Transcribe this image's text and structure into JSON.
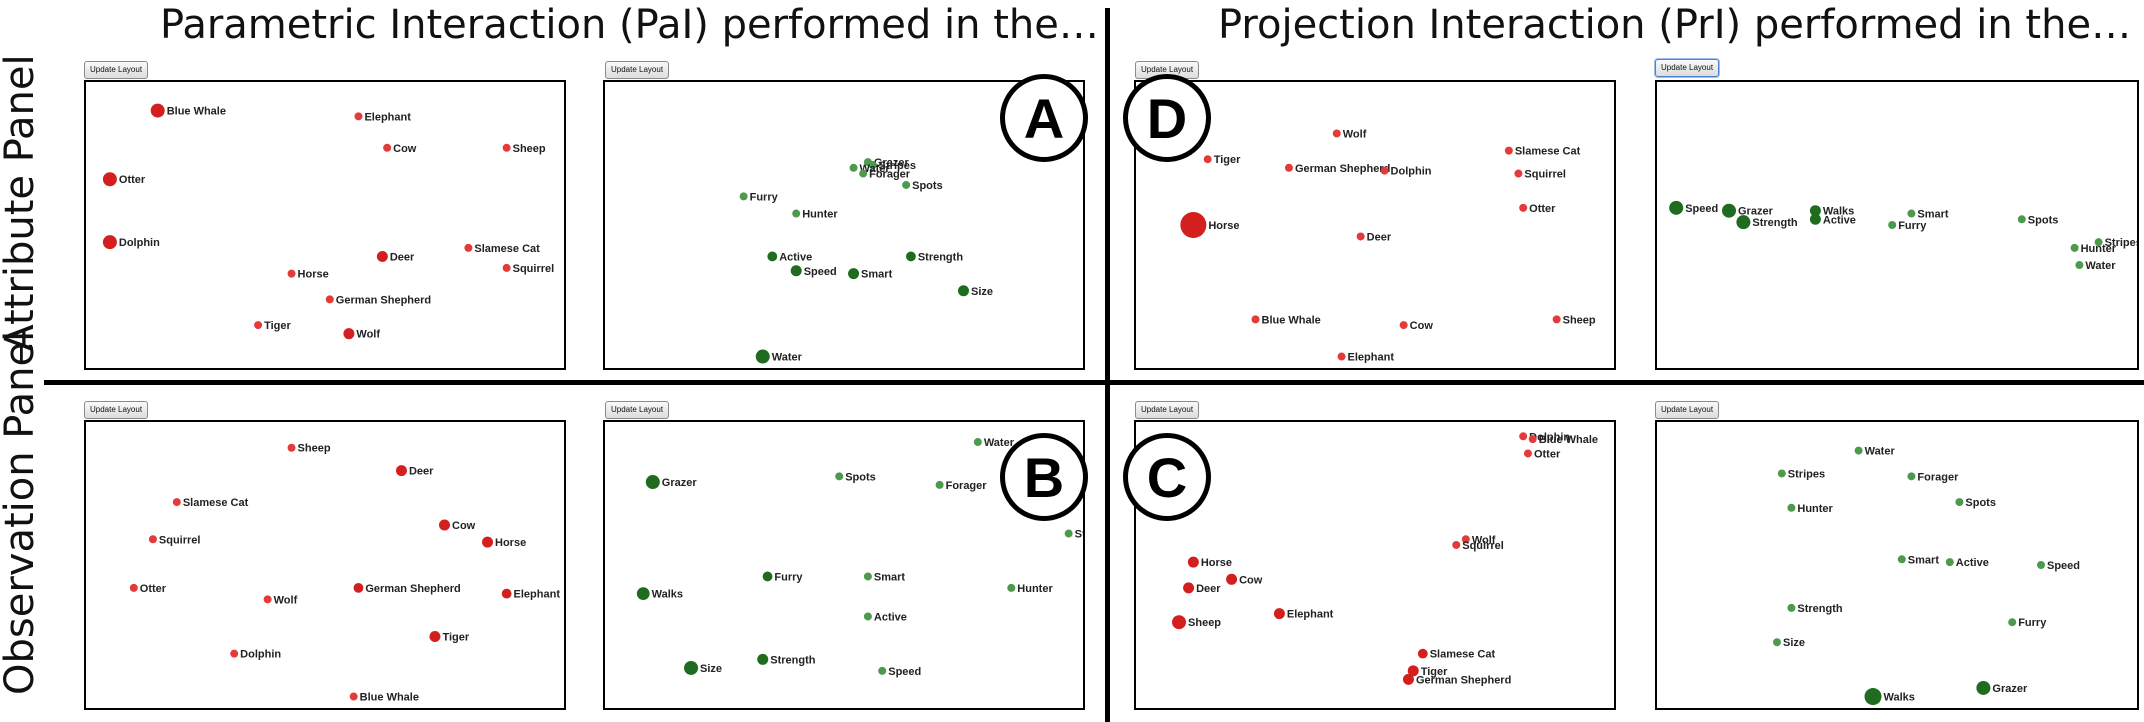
{
  "headers": {
    "left": "Parametric Interaction (PaI) performed in the…",
    "right": "Projection Interaction (PrI) performed in the…",
    "top_row": "Attribute Panel",
    "bottom_row": "Observation Panel"
  },
  "button_label": "Update Layout",
  "badges": {
    "a": "A",
    "b": "B",
    "c": "C",
    "d": "D"
  },
  "colors": {
    "observation": "#e53a3a",
    "observation_dark": "#d41f1f",
    "attribute": "#4c9a4c",
    "attribute_dark": "#1f6b1f"
  },
  "panels": [
    {
      "id": "A-observations",
      "kind": "observation",
      "points": [
        {
          "label": "Blue Whale",
          "x": 0.15,
          "y": 0.1,
          "size": 2
        },
        {
          "label": "Elephant",
          "x": 0.57,
          "y": 0.12,
          "size": 1
        },
        {
          "label": "Cow",
          "x": 0.63,
          "y": 0.23,
          "size": 1
        },
        {
          "label": "Sheep",
          "x": 0.88,
          "y": 0.23,
          "size": 1
        },
        {
          "label": "Otter",
          "x": 0.05,
          "y": 0.34,
          "size": 2
        },
        {
          "label": "Dolphin",
          "x": 0.05,
          "y": 0.56,
          "size": 2
        },
        {
          "label": "Slamese Cat",
          "x": 0.8,
          "y": 0.58,
          "size": 1
        },
        {
          "label": "Deer",
          "x": 0.62,
          "y": 0.61,
          "size": 1.5
        },
        {
          "label": "Horse",
          "x": 0.43,
          "y": 0.67,
          "size": 1
        },
        {
          "label": "Squirrel",
          "x": 0.88,
          "y": 0.65,
          "size": 1
        },
        {
          "label": "German Shepherd",
          "x": 0.51,
          "y": 0.76,
          "size": 1
        },
        {
          "label": "Tiger",
          "x": 0.36,
          "y": 0.85,
          "size": 1
        },
        {
          "label": "Wolf",
          "x": 0.55,
          "y": 0.88,
          "size": 1.5
        }
      ]
    },
    {
      "id": "A-attributes",
      "kind": "attribute",
      "points": [
        {
          "label": "Grazer",
          "x": 0.55,
          "y": 0.28,
          "size": 1
        },
        {
          "label": "Stripes",
          "x": 0.56,
          "y": 0.29,
          "size": 1
        },
        {
          "label": "Water",
          "x": 0.52,
          "y": 0.3,
          "size": 1
        },
        {
          "label": "Forager",
          "x": 0.54,
          "y": 0.32,
          "size": 1
        },
        {
          "label": "Spots",
          "x": 0.63,
          "y": 0.36,
          "size": 1
        },
        {
          "label": "Furry",
          "x": 0.29,
          "y": 0.4,
          "size": 1
        },
        {
          "label": "Hunter",
          "x": 0.4,
          "y": 0.46,
          "size": 1
        },
        {
          "label": "Active",
          "x": 0.35,
          "y": 0.61,
          "size": 1.3
        },
        {
          "label": "Strength",
          "x": 0.64,
          "y": 0.61,
          "size": 1.3
        },
        {
          "label": "Speed",
          "x": 0.4,
          "y": 0.66,
          "size": 1.5
        },
        {
          "label": "Smart",
          "x": 0.52,
          "y": 0.67,
          "size": 1.5
        },
        {
          "label": "Size",
          "x": 0.75,
          "y": 0.73,
          "size": 1.5
        },
        {
          "label": "Water",
          "x": 0.33,
          "y": 0.96,
          "size": 2
        }
      ]
    },
    {
      "id": "D-observations",
      "kind": "observation",
      "points": [
        {
          "label": "Wolf",
          "x": 0.42,
          "y": 0.18,
          "size": 1
        },
        {
          "label": "Tiger",
          "x": 0.15,
          "y": 0.27,
          "size": 1
        },
        {
          "label": "Slamese Cat",
          "x": 0.78,
          "y": 0.24,
          "size": 1
        },
        {
          "label": "German Shepherd",
          "x": 0.32,
          "y": 0.3,
          "size": 1
        },
        {
          "label": "Dolphin",
          "x": 0.52,
          "y": 0.31,
          "size": 1
        },
        {
          "label": "Squirrel",
          "x": 0.8,
          "y": 0.32,
          "size": 1
        },
        {
          "label": "Otter",
          "x": 0.81,
          "y": 0.44,
          "size": 1
        },
        {
          "label": "Horse",
          "x": 0.12,
          "y": 0.5,
          "size": 4
        },
        {
          "label": "Deer",
          "x": 0.47,
          "y": 0.54,
          "size": 1
        },
        {
          "label": "Blue Whale",
          "x": 0.25,
          "y": 0.83,
          "size": 1
        },
        {
          "label": "Cow",
          "x": 0.56,
          "y": 0.85,
          "size": 1
        },
        {
          "label": "Sheep",
          "x": 0.88,
          "y": 0.83,
          "size": 1
        },
        {
          "label": "Elephant",
          "x": 0.43,
          "y": 0.96,
          "size": 1
        }
      ]
    },
    {
      "id": "D-attributes",
      "kind": "attribute",
      "points": [
        {
          "label": "Speed",
          "x": 0.04,
          "y": 0.44,
          "size": 2
        },
        {
          "label": "Grazer",
          "x": 0.15,
          "y": 0.45,
          "size": 2
        },
        {
          "label": "Walks",
          "x": 0.33,
          "y": 0.45,
          "size": 1.5
        },
        {
          "label": "Smart",
          "x": 0.53,
          "y": 0.46,
          "size": 1
        },
        {
          "label": "Strength",
          "x": 0.18,
          "y": 0.49,
          "size": 2
        },
        {
          "label": "Active",
          "x": 0.33,
          "y": 0.48,
          "size": 1.5
        },
        {
          "label": "Furry",
          "x": 0.49,
          "y": 0.5,
          "size": 1
        },
        {
          "label": "Spots",
          "x": 0.76,
          "y": 0.48,
          "size": 1
        },
        {
          "label": "Stripes",
          "x": 0.92,
          "y": 0.56,
          "size": 1
        },
        {
          "label": "Hunter",
          "x": 0.87,
          "y": 0.58,
          "size": 1
        },
        {
          "label": "Water",
          "x": 0.88,
          "y": 0.64,
          "size": 1
        }
      ]
    },
    {
      "id": "B-observations",
      "kind": "observation",
      "points": [
        {
          "label": "Sheep",
          "x": 0.43,
          "y": 0.09,
          "size": 1
        },
        {
          "label": "Deer",
          "x": 0.66,
          "y": 0.17,
          "size": 1.5
        },
        {
          "label": "Slamese Cat",
          "x": 0.19,
          "y": 0.28,
          "size": 1
        },
        {
          "label": "Cow",
          "x": 0.75,
          "y": 0.36,
          "size": 1.5
        },
        {
          "label": "Squirrel",
          "x": 0.14,
          "y": 0.41,
          "size": 1
        },
        {
          "label": "Horse",
          "x": 0.84,
          "y": 0.42,
          "size": 1.5
        },
        {
          "label": "Otter",
          "x": 0.1,
          "y": 0.58,
          "size": 1
        },
        {
          "label": "German Shepherd",
          "x": 0.57,
          "y": 0.58,
          "size": 1.3
        },
        {
          "label": "Wolf",
          "x": 0.38,
          "y": 0.62,
          "size": 1
        },
        {
          "label": "Elephant",
          "x": 0.88,
          "y": 0.6,
          "size": 1.3
        },
        {
          "label": "Tiger",
          "x": 0.73,
          "y": 0.75,
          "size": 1.5
        },
        {
          "label": "Dolphin",
          "x": 0.31,
          "y": 0.81,
          "size": 1
        },
        {
          "label": "Blue Whale",
          "x": 0.56,
          "y": 0.96,
          "size": 1
        }
      ]
    },
    {
      "id": "B-attributes",
      "kind": "attribute",
      "points": [
        {
          "label": "Water",
          "x": 0.78,
          "y": 0.07,
          "size": 1
        },
        {
          "label": "Grazer",
          "x": 0.1,
          "y": 0.21,
          "size": 2
        },
        {
          "label": "Spots",
          "x": 0.49,
          "y": 0.19,
          "size": 1
        },
        {
          "label": "Forager",
          "x": 0.7,
          "y": 0.22,
          "size": 1
        },
        {
          "label": "Str",
          "x": 0.97,
          "y": 0.39,
          "size": 1
        },
        {
          "label": "Furry",
          "x": 0.34,
          "y": 0.54,
          "size": 1.3
        },
        {
          "label": "Smart",
          "x": 0.55,
          "y": 0.54,
          "size": 1
        },
        {
          "label": "Hunter",
          "x": 0.85,
          "y": 0.58,
          "size": 1
        },
        {
          "label": "Walks",
          "x": 0.08,
          "y": 0.6,
          "size": 1.8
        },
        {
          "label": "Active",
          "x": 0.55,
          "y": 0.68,
          "size": 1
        },
        {
          "label": "Size",
          "x": 0.18,
          "y": 0.86,
          "size": 2
        },
        {
          "label": "Strength",
          "x": 0.33,
          "y": 0.83,
          "size": 1.5
        },
        {
          "label": "Speed",
          "x": 0.58,
          "y": 0.87,
          "size": 1
        }
      ]
    },
    {
      "id": "C-observations",
      "kind": "observation",
      "points": [
        {
          "label": "Dolphin",
          "x": 0.81,
          "y": 0.05,
          "size": 1
        },
        {
          "label": "Blue Whale",
          "x": 0.83,
          "y": 0.06,
          "size": 1
        },
        {
          "label": "Otter",
          "x": 0.82,
          "y": 0.11,
          "size": 1
        },
        {
          "label": "Wolf",
          "x": 0.69,
          "y": 0.41,
          "size": 1
        },
        {
          "label": "Squirrel",
          "x": 0.67,
          "y": 0.43,
          "size": 1
        },
        {
          "label": "Horse",
          "x": 0.12,
          "y": 0.49,
          "size": 1.5
        },
        {
          "label": "Cow",
          "x": 0.2,
          "y": 0.55,
          "size": 1.5
        },
        {
          "label": "Deer",
          "x": 0.11,
          "y": 0.58,
          "size": 1.5
        },
        {
          "label": "Elephant",
          "x": 0.3,
          "y": 0.67,
          "size": 1.5
        },
        {
          "label": "Sheep",
          "x": 0.09,
          "y": 0.7,
          "size": 2
        },
        {
          "label": "Slamese Cat",
          "x": 0.6,
          "y": 0.81,
          "size": 1.3
        },
        {
          "label": "Tiger",
          "x": 0.58,
          "y": 0.87,
          "size": 1.5
        },
        {
          "label": "German Shepherd",
          "x": 0.57,
          "y": 0.9,
          "size": 1.5
        }
      ]
    },
    {
      "id": "C-attributes",
      "kind": "attribute",
      "points": [
        {
          "label": "Water",
          "x": 0.42,
          "y": 0.1,
          "size": 1
        },
        {
          "label": "Stripes",
          "x": 0.26,
          "y": 0.18,
          "size": 1
        },
        {
          "label": "Forager",
          "x": 0.53,
          "y": 0.19,
          "size": 1
        },
        {
          "label": "Hunter",
          "x": 0.28,
          "y": 0.3,
          "size": 1
        },
        {
          "label": "Spots",
          "x": 0.63,
          "y": 0.28,
          "size": 1
        },
        {
          "label": "Smart",
          "x": 0.51,
          "y": 0.48,
          "size": 1
        },
        {
          "label": "Active",
          "x": 0.61,
          "y": 0.49,
          "size": 1
        },
        {
          "label": "Speed",
          "x": 0.8,
          "y": 0.5,
          "size": 1
        },
        {
          "label": "Strength",
          "x": 0.28,
          "y": 0.65,
          "size": 1
        },
        {
          "label": "Furry",
          "x": 0.74,
          "y": 0.7,
          "size": 1
        },
        {
          "label": "Size",
          "x": 0.25,
          "y": 0.77,
          "size": 1
        },
        {
          "label": "Walks",
          "x": 0.45,
          "y": 0.96,
          "size": 2.5
        },
        {
          "label": "Grazer",
          "x": 0.68,
          "y": 0.93,
          "size": 2
        }
      ]
    }
  ]
}
